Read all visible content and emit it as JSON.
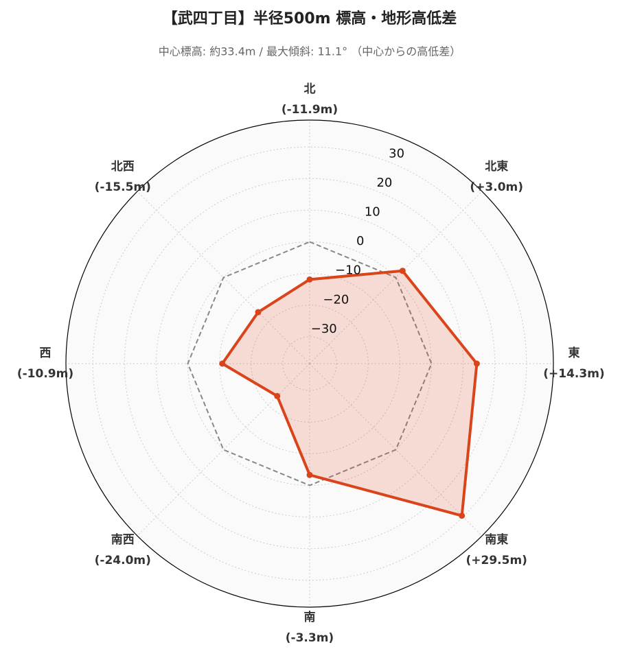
{
  "chart_data": {
    "type": "radar",
    "title": "【武四丁目】半径500m 標高・地形高低差",
    "subtitle": "中心標高: 約33.4m / 最大傾斜: 11.1° （中心からの高低差）",
    "categories": [
      "北",
      "北東",
      "東",
      "南東",
      "南",
      "南西",
      "西",
      "北西"
    ],
    "values": [
      -11.9,
      3.0,
      14.3,
      29.5,
      -3.3,
      -24.0,
      -10.9,
      -15.5
    ],
    "value_labels": [
      "(-11.9m)",
      "(+3.0m)",
      "(+14.3m)",
      "(+29.5m)",
      "(-3.3m)",
      "(-24.0m)",
      "(-10.9m)",
      "(-15.5m)"
    ],
    "color": "#d9441a",
    "reference": 0,
    "ylim": [
      -38.5,
      38.5
    ],
    "yticks": [
      {
        "value": -30,
        "label": "−30"
      },
      {
        "value": -20,
        "label": "−20"
      },
      {
        "value": -10,
        "label": "−10"
      },
      0,
      10,
      20,
      30
    ],
    "grid": true
  }
}
